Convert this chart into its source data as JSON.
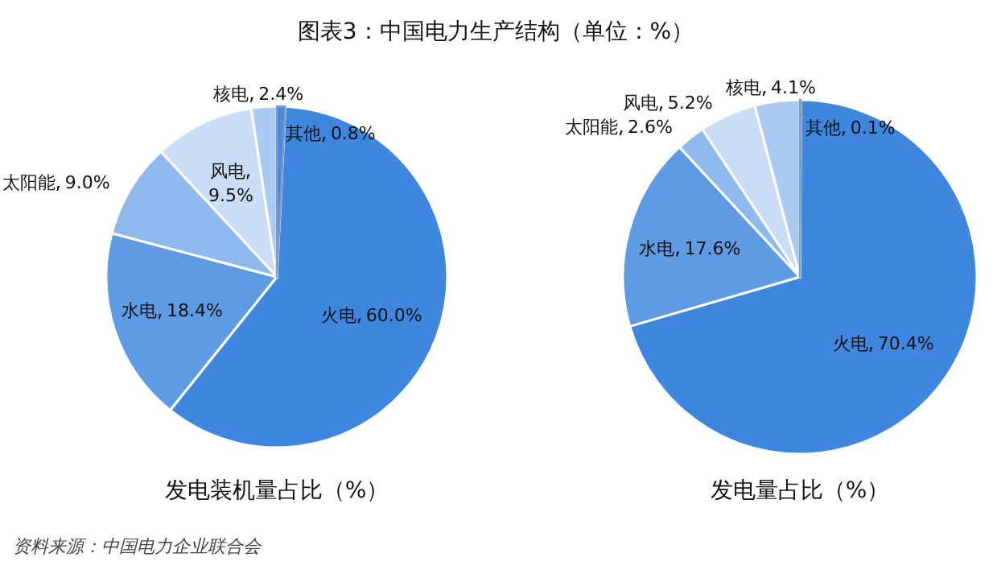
{
  "chart_data": [
    {
      "type": "pie",
      "title": "图表3：中国电力生产结构（单位：%）",
      "subtitle": "发电装机量占比（%）",
      "categories": [
        "其他",
        "火电",
        "水电",
        "太阳能",
        "风电",
        "核电"
      ],
      "values": [
        0.8,
        60.0,
        18.4,
        9.0,
        9.5,
        2.4
      ],
      "colors": [
        "#4a8ae0",
        "#3f86df",
        "#5f9be3",
        "#8fb8ec",
        "#c9ddf6",
        "#abcaf1"
      ],
      "value_labels": [
        "0.8%",
        "60.0%",
        "18.4%",
        "9.0%",
        "9.5%",
        "2.4%"
      ],
      "annotations": [
        "资料来源：中国电力企业联合会"
      ]
    },
    {
      "type": "pie",
      "subtitle": "发电量占比（%）",
      "categories": [
        "其他",
        "火电",
        "水电",
        "太阳能",
        "风电",
        "核电"
      ],
      "values": [
        0.1,
        70.4,
        17.6,
        2.6,
        5.2,
        4.1
      ],
      "colors": [
        "#4a8ae0",
        "#3f86df",
        "#5f9be3",
        "#8fb8ec",
        "#c9ddf6",
        "#abcaf1"
      ],
      "value_labels": [
        "0.1%",
        "70.4%",
        "17.6%",
        "2.6%",
        "5.2%",
        "4.1%"
      ]
    }
  ]
}
